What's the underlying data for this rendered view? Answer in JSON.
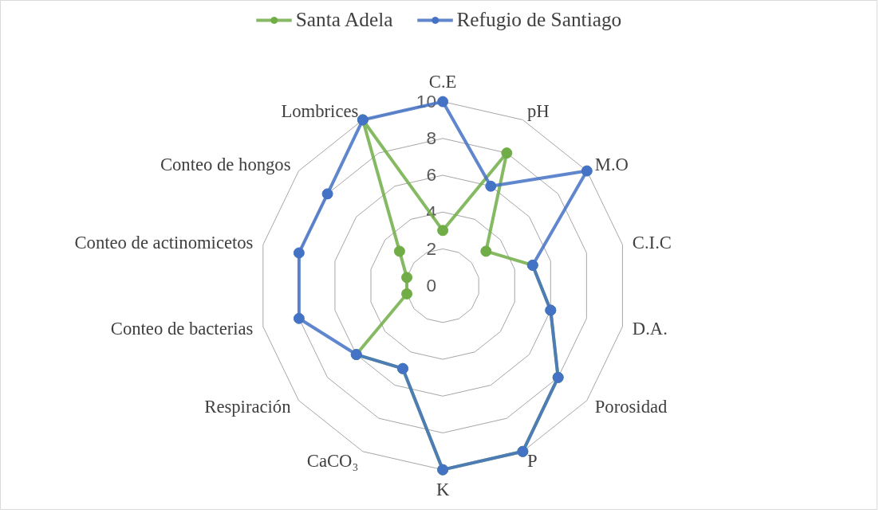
{
  "chart_data": {
    "type": "radar",
    "categories": [
      "C.E",
      "pH",
      "M.O",
      "C.I.C",
      "D.A.",
      "Porosidad",
      "P",
      "K",
      "CaCO₃",
      "Respiración",
      "Conteo de bacterias",
      "Conteo de actinomicetos",
      "Conteo de hongos",
      "Lombrices"
    ],
    "series": [
      {
        "name": "Santa Adela",
        "color": "#70ad47",
        "values": [
          3,
          8,
          3,
          5,
          6,
          8,
          10,
          10,
          5,
          6,
          2,
          2,
          3,
          10
        ]
      },
      {
        "name": "Refugio de Santiago",
        "color": "#4472c4",
        "values": [
          10,
          6,
          10,
          5,
          6,
          8,
          10,
          10,
          5,
          6,
          8,
          8,
          8,
          10
        ]
      }
    ],
    "ylim": [
      0,
      10
    ],
    "yticks": [
      0,
      2,
      4,
      6,
      8,
      10
    ],
    "grid": true,
    "legend": "top",
    "marker": "circle",
    "line_style": "solid"
  }
}
